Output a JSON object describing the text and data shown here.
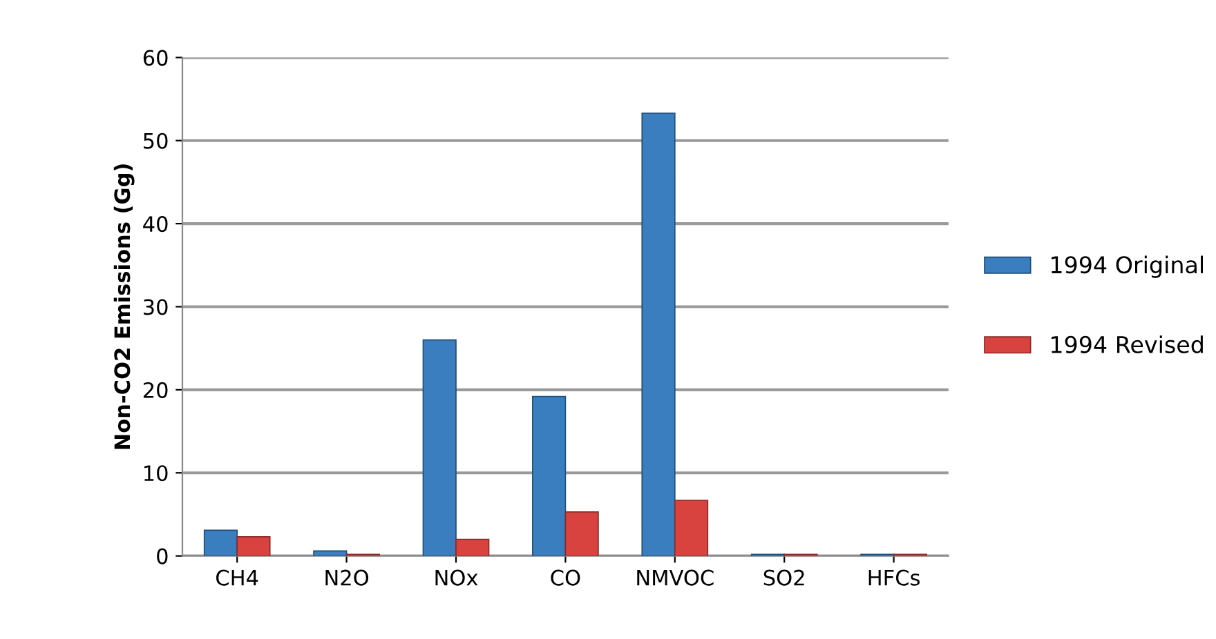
{
  "chart_data": {
    "type": "bar",
    "ylabel": "Non-CO2 Emissions (Gg)",
    "categories": [
      "CH4",
      "N2O",
      "NOx",
      "CO",
      "NMVOC",
      "SO2",
      "HFCs"
    ],
    "series": [
      {
        "name": "1994 Original",
        "color": "#3a7ebf",
        "values": [
          3.1,
          0.6,
          26,
          19.2,
          53.3,
          0.2,
          0.2
        ]
      },
      {
        "name": "1994 Revised",
        "color": "#d9433f",
        "values": [
          2.3,
          0.2,
          2,
          5.3,
          6.7,
          0.2,
          0.2
        ]
      }
    ],
    "ylim": [
      0,
      60
    ],
    "yticks": [
      0,
      10,
      20,
      30,
      40,
      50,
      60
    ],
    "grid": "y",
    "legend": "right"
  }
}
